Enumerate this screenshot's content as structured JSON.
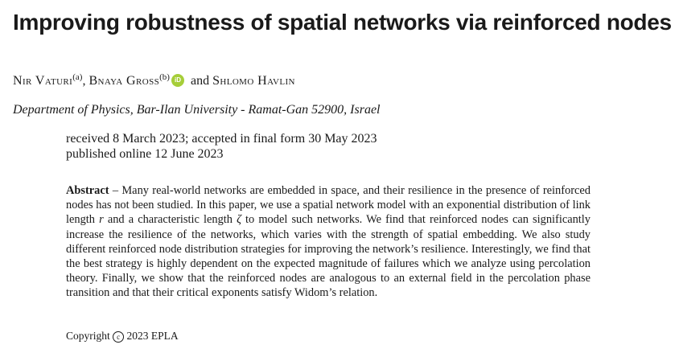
{
  "title": "Improving robustness of spatial networks via reinforced nodes",
  "authors": [
    {
      "name": "Nir Vaturi",
      "mark": "(a)",
      "orcid": false,
      "sep": ", "
    },
    {
      "name": "Bnaya Gross",
      "mark": "(b)",
      "orcid": true,
      "sep": " and "
    },
    {
      "name": "Shlomo Havlin",
      "mark": "",
      "orcid": false,
      "sep": ""
    }
  ],
  "orcid_label": "iD",
  "affiliation": "Department of Physics, Bar-Ilan University - Ramat-Gan 52900, Israel",
  "dates": {
    "line1": "received 8 March 2023; accepted in final form 30 May 2023",
    "line2": "published online 12 June 2023"
  },
  "abstract": {
    "label": "Abstract",
    "dash": " – ",
    "seg1": "Many real-world networks are embedded in space, and their resilience in the presence of reinforced nodes has not been studied. In this paper, we use a spatial network model with an exponential distribution of link length ",
    "sym_r": "r",
    "seg2": " and a characteristic length ",
    "sym_zeta": "ζ",
    "seg3": " to model such networks. We find that reinforced nodes can significantly increase the resilience of the networks, which varies with the strength of spatial embedding. We also study different reinforced node distribution strategies for improving the network’s resilience. Interestingly, we find that the best strategy is highly dependent on the expected magnitude of failures which we analyze using percolation theory. Finally, we show that the reinforced nodes are analogous to an external field in the percolation phase transition and that their critical exponents satisfy Widom’s relation."
  },
  "copyright": {
    "prefix": "Copyright",
    "symbol": "c",
    "year_org": "2023 EPLA"
  }
}
